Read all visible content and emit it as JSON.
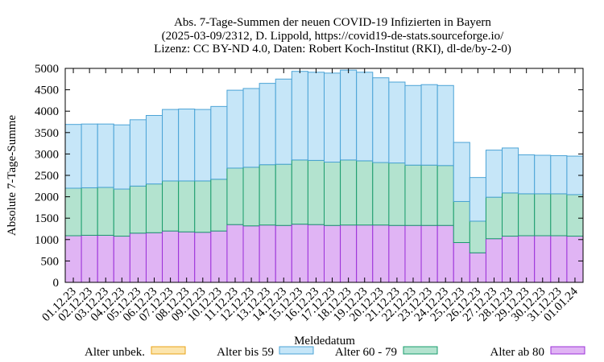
{
  "chart_data": {
    "type": "bar",
    "stacked": true,
    "title_lines": [
      "Abs. 7-Tage-Summen der neuen COVID-19 Infizierten in Bayern",
      "(2025-03-09/2312, D. Lippold, https://covid19-de-stats.sourceforge.io/",
      "Lizenz: CC BY-ND 4.0, Daten: Robert Koch-Institut (RKI), dl-de/by-2-0)"
    ],
    "xlabel": "Meldedatum",
    "ylabel": "Absolute 7-Tage-Summe",
    "ylim": [
      0,
      5000
    ],
    "yticks": [
      0,
      500,
      1000,
      1500,
      2000,
      2500,
      3000,
      3500,
      4000,
      4500,
      5000
    ],
    "categories": [
      "01.12.23",
      "02.12.23",
      "03.12.23",
      "04.12.23",
      "05.12.23",
      "06.12.23",
      "07.12.23",
      "08.12.23",
      "09.12.23",
      "10.12.23",
      "11.12.23",
      "12.12.23",
      "13.12.23",
      "14.12.23",
      "15.12.23",
      "16.12.23",
      "17.12.23",
      "18.12.23",
      "19.12.23",
      "20.12.23",
      "21.12.23",
      "22.12.23",
      "23.12.23",
      "24.12.23",
      "25.12.23",
      "26.12.23",
      "27.12.23",
      "28.12.23",
      "29.12.23",
      "30.12.23",
      "31.12.23",
      "01.01.24"
    ],
    "series": [
      {
        "name": "Alter ab 80",
        "color": "#e0b4f4",
        "stroke": "#9b30d9",
        "values": [
          1090,
          1100,
          1100,
          1080,
          1150,
          1160,
          1200,
          1180,
          1170,
          1200,
          1350,
          1320,
          1340,
          1330,
          1360,
          1350,
          1330,
          1340,
          1340,
          1340,
          1330,
          1330,
          1330,
          1330,
          930,
          690,
          1020,
          1080,
          1090,
          1090,
          1090,
          1080
        ]
      },
      {
        "name": "Alter 60 - 79",
        "color": "#b3e3cf",
        "stroke": "#1a9c6c",
        "values": [
          1110,
          1110,
          1120,
          1100,
          1100,
          1140,
          1170,
          1190,
          1200,
          1210,
          1320,
          1370,
          1410,
          1430,
          1500,
          1500,
          1480,
          1520,
          1500,
          1460,
          1460,
          1410,
          1410,
          1400,
          960,
          740,
          970,
          1010,
          980,
          980,
          980,
          970
        ]
      },
      {
        "name": "Alter bis 59",
        "color": "#c6e6f8",
        "stroke": "#4ba3d6",
        "values": [
          1490,
          1490,
          1480,
          1500,
          1550,
          1600,
          1670,
          1680,
          1670,
          1700,
          1820,
          1840,
          1900,
          1990,
          2070,
          2060,
          2080,
          2100,
          2070,
          1980,
          1890,
          1860,
          1880,
          1870,
          1380,
          1020,
          1100,
          1050,
          910,
          900,
          890,
          900
        ]
      },
      {
        "name": "Alter unbek.",
        "color": "#fce5ad",
        "stroke": "#e8a317",
        "values": [
          0,
          0,
          0,
          0,
          0,
          0,
          0,
          0,
          0,
          0,
          0,
          0,
          0,
          0,
          0,
          0,
          0,
          0,
          0,
          0,
          0,
          0,
          0,
          0,
          0,
          0,
          0,
          0,
          0,
          0,
          0,
          0
        ]
      }
    ],
    "legend_order": [
      "Alter unbek.",
      "Alter bis 59",
      "Alter 60 - 79",
      "Alter ab 80"
    ],
    "legend_position": "bottom",
    "grid": false
  }
}
